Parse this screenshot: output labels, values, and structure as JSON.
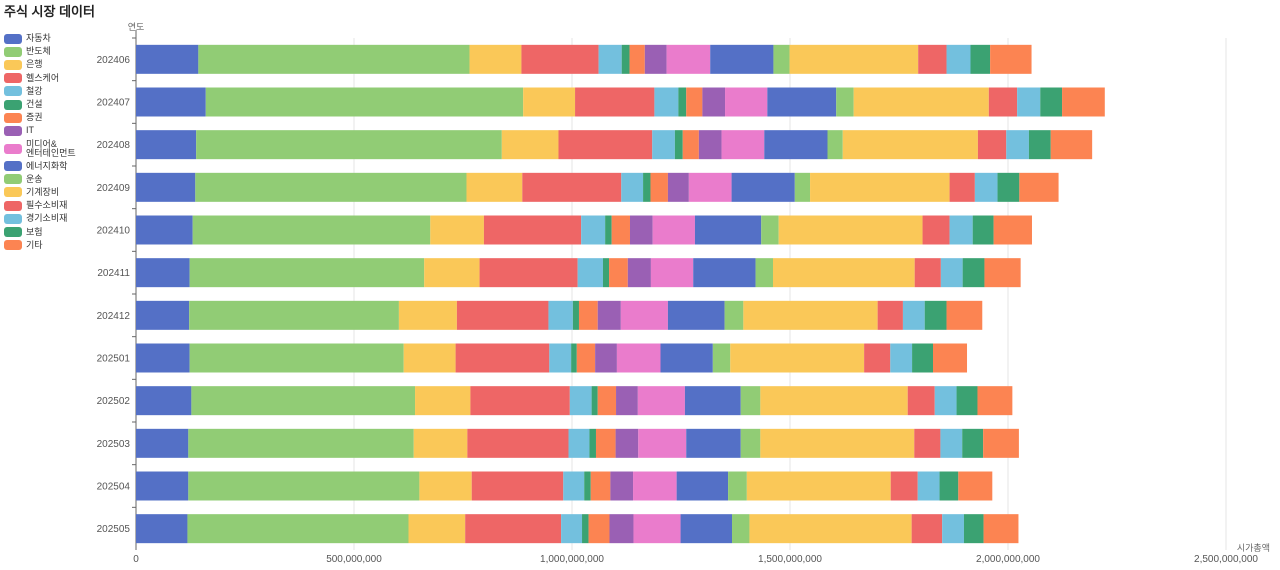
{
  "chart_data": {
    "type": "bar",
    "orientation": "horizontal",
    "stacked": true,
    "title": "주식 시장 데이터",
    "xlabel": "시가총액",
    "ylabel": "연도",
    "xlim": [
      0,
      2500000000
    ],
    "xticks": [
      "0",
      "500,000,000",
      "1,000,000,000",
      "1,500,000,000",
      "2,000,000,000",
      "2,500,000,000"
    ],
    "grid": true,
    "legend_position": "left",
    "categories": [
      "202406",
      "202407",
      "202408",
      "202409",
      "202410",
      "202411",
      "202412",
      "202501",
      "202502",
      "202503",
      "202504",
      "202505"
    ],
    "series": [
      {
        "name": "자동차",
        "color": "#5470c6",
        "values": [
          143000000,
          160000000,
          138000000,
          136000000,
          130000000,
          123000000,
          122000000,
          123000000,
          127000000,
          120000000,
          120000000,
          118000000
        ]
      },
      {
        "name": "반도체",
        "color": "#91cc75",
        "values": [
          622000000,
          728000000,
          701000000,
          622000000,
          545000000,
          538000000,
          481000000,
          491000000,
          513000000,
          517000000,
          530000000,
          507000000
        ]
      },
      {
        "name": "은행",
        "color": "#fac858",
        "values": [
          119000000,
          119000000,
          130000000,
          128000000,
          123000000,
          127000000,
          133000000,
          119000000,
          127000000,
          123000000,
          120000000,
          130000000
        ]
      },
      {
        "name": "헬스케어",
        "color": "#ee6666",
        "values": [
          177000000,
          182000000,
          215000000,
          227000000,
          223000000,
          225000000,
          210000000,
          215000000,
          228000000,
          232000000,
          210000000,
          220000000
        ]
      },
      {
        "name": "철강",
        "color": "#73c0de",
        "values": [
          53000000,
          55000000,
          52000000,
          50000000,
          55000000,
          58000000,
          56000000,
          50000000,
          50000000,
          48000000,
          48000000,
          48000000
        ]
      },
      {
        "name": "건설",
        "color": "#3ba272",
        "values": [
          18000000,
          18000000,
          18000000,
          17000000,
          15000000,
          14000000,
          14000000,
          13000000,
          14000000,
          15000000,
          15000000,
          15000000
        ]
      },
      {
        "name": "증권",
        "color": "#fc8452",
        "values": [
          35000000,
          37000000,
          37000000,
          40000000,
          42000000,
          43000000,
          43000000,
          42000000,
          42000000,
          45000000,
          45000000,
          48000000
        ]
      },
      {
        "name": "IT",
        "color": "#9a60b4",
        "values": [
          50000000,
          52000000,
          52000000,
          48000000,
          52000000,
          53000000,
          53000000,
          50000000,
          50000000,
          52000000,
          52000000,
          55000000
        ]
      },
      {
        "name": "미디어&\n엔터테인먼트",
        "color": "#ea7ccc",
        "values": [
          100000000,
          97000000,
          98000000,
          98000000,
          97000000,
          97000000,
          108000000,
          100000000,
          108000000,
          110000000,
          100000000,
          108000000
        ]
      },
      {
        "name": "에너지화학",
        "color": "#5470c6",
        "values": [
          145000000,
          158000000,
          145000000,
          145000000,
          152000000,
          143000000,
          130000000,
          120000000,
          128000000,
          125000000,
          118000000,
          118000000
        ]
      },
      {
        "name": "운송",
        "color": "#91cc75",
        "values": [
          37000000,
          40000000,
          35000000,
          35000000,
          40000000,
          40000000,
          43000000,
          40000000,
          45000000,
          45000000,
          43000000,
          40000000
        ]
      },
      {
        "name": "기계장비",
        "color": "#fac858",
        "values": [
          295000000,
          310000000,
          310000000,
          320000000,
          330000000,
          325000000,
          308000000,
          307000000,
          338000000,
          353000000,
          330000000,
          372000000
        ]
      },
      {
        "name": "필수소비재",
        "color": "#ee6666",
        "values": [
          65000000,
          65000000,
          65000000,
          58000000,
          62000000,
          60000000,
          58000000,
          60000000,
          62000000,
          60000000,
          62000000,
          70000000
        ]
      },
      {
        "name": "경기소비재",
        "color": "#73c0de",
        "values": [
          55000000,
          53000000,
          52000000,
          52000000,
          53000000,
          50000000,
          50000000,
          50000000,
          50000000,
          50000000,
          50000000,
          50000000
        ]
      },
      {
        "name": "보험",
        "color": "#3ba272",
        "values": [
          45000000,
          50000000,
          50000000,
          50000000,
          48000000,
          50000000,
          50000000,
          48000000,
          48000000,
          48000000,
          43000000,
          45000000
        ]
      },
      {
        "name": "기타",
        "color": "#fc8452",
        "values": [
          95000000,
          98000000,
          95000000,
          90000000,
          88000000,
          83000000,
          82000000,
          78000000,
          80000000,
          82000000,
          78000000,
          80000000
        ]
      }
    ]
  }
}
